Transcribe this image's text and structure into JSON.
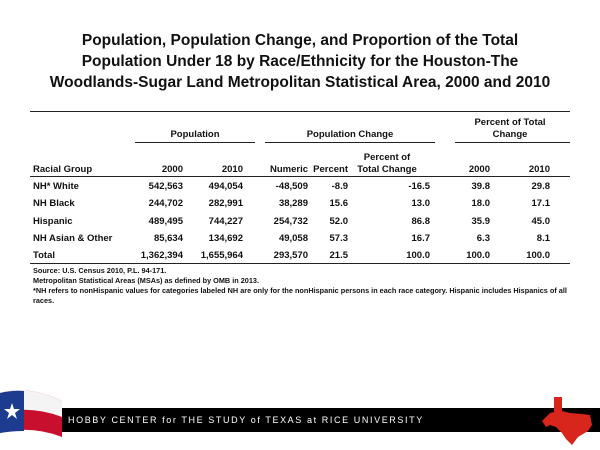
{
  "title": "Population, Population Change, and Proportion of the Total Population Under 18 by Race/Ethnicity for the Houston-The Woodlands-Sugar Land Metropolitan Statistical Area, 2000 and 2010",
  "table": {
    "group_headers": [
      "Population",
      "Population Change",
      "Percent of Total Change"
    ],
    "columns": [
      "Racial Group",
      "2000",
      "2010",
      "Numeric",
      "Percent",
      "Percent of Total Change",
      "2000",
      "2010"
    ],
    "rows": [
      [
        "NH* White",
        "542,563",
        "494,054",
        "-48,509",
        "-8.9",
        "-16.5",
        "39.8",
        "29.8"
      ],
      [
        "NH Black",
        "244,702",
        "282,991",
        "38,289",
        "15.6",
        "13.0",
        "18.0",
        "17.1"
      ],
      [
        "Hispanic",
        "489,495",
        "744,227",
        "254,732",
        "52.0",
        "86.8",
        "35.9",
        "45.0"
      ],
      [
        "NH Asian & Other",
        "85,634",
        "134,692",
        "49,058",
        "57.3",
        "16.7",
        "6.3",
        "8.1"
      ],
      [
        "Total",
        "1,362,394",
        "1,655,964",
        "293,570",
        "21.5",
        "100.0",
        "100.0",
        "100.0"
      ]
    ]
  },
  "notes": [
    "Source: U.S. Census 2010, P.L. 94-171.",
    "Metropolitan Statistical Areas (MSAs) as defined by OMB in 2013.",
    "*NH refers to nonHispanic values for categories labeled NH are only for the nonHispanic persons in each race category. Hispanic includes Hispanics of all races."
  ],
  "footer": "HOBBY CENTER for THE STUDY of TEXAS at RICE UNIVERSITY"
}
